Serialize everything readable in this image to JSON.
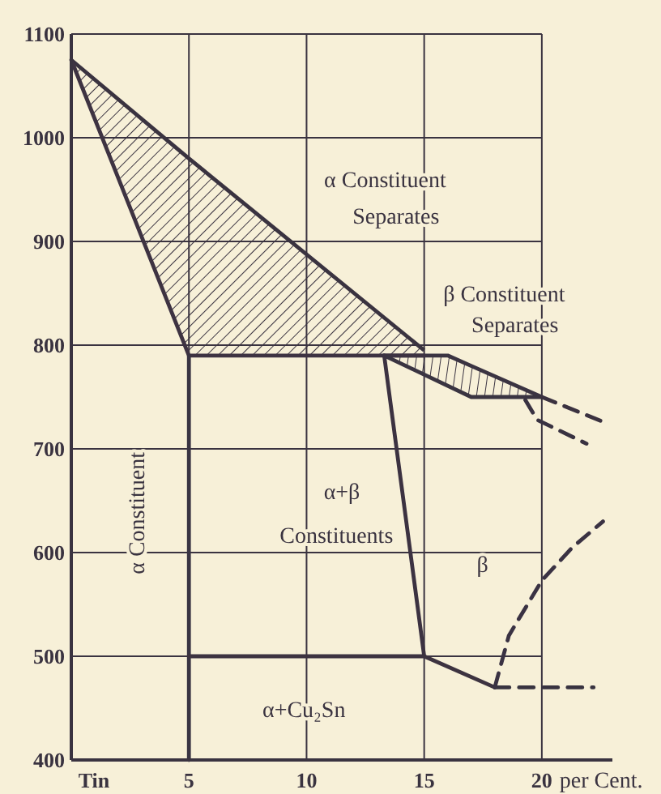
{
  "chart_data": {
    "type": "line",
    "xlabel": "per Cent.",
    "xlim": [
      0,
      23
    ],
    "ylim": [
      400,
      1100
    ],
    "xticks": [
      {
        "value": 0,
        "label": "Tin"
      },
      5,
      10,
      15,
      20
    ],
    "yticks": [
      400,
      500,
      600,
      700,
      800,
      900,
      1000,
      1100
    ],
    "grid": true,
    "marker": "none",
    "line_style": "solid",
    "series": [
      {
        "color": "#3a3340",
        "x": [
          0,
          5,
          15
        ],
        "values": [
          1075,
          980,
          795
        ],
        "upper": [
          1075,
          980,
          795
        ],
        "lower": [
          1075,
          790,
          790
        ]
      },
      {
        "color": "#3b3442",
        "x": [
          13.3,
          16,
          17,
          20
        ],
        "values": [
          790,
          790,
          780,
          750
        ],
        "upper": [
          790,
          790,
          780,
          750
        ],
        "lower": [
          790,
          761,
          750,
          750
        ]
      },
      {
        "color": "#3e3342",
        "x": [
          0,
          5,
          15
        ],
        "values": [
          1075,
          790,
          790
        ]
      },
      {
        "color": "#3a3441",
        "x": [
          13.3,
          17,
          20
        ],
        "values": [
          790,
          750,
          750
        ]
      },
      {
        "color": "#3c3241",
        "x": [
          13.3,
          15
        ],
        "values": [
          790,
          500
        ]
      },
      {
        "color": "#393443",
        "x": [
          5,
          5
        ],
        "values": [
          790,
          400
        ]
      },
      {
        "color": "#3d3340",
        "x": [
          5,
          15,
          18
        ],
        "values": [
          500,
          500,
          470
        ]
      },
      {
        "color": "#383340",
        "line_style": "dashed",
        "x": [
          18,
          22.2
        ],
        "values": [
          470,
          470
        ]
      },
      {
        "color": "#3a3243",
        "line_style": "dashed",
        "x": [
          18,
          18.6,
          20,
          21.3,
          22.6
        ],
        "values": [
          470,
          520,
          573,
          605,
          630
        ]
      },
      {
        "color": "#3b3240",
        "line_style": "dashed",
        "x": [
          20,
          22.5
        ],
        "values": [
          750,
          727
        ]
      },
      {
        "color": "#393241",
        "line_style": "dashed",
        "x": [
          19.3,
          19.8,
          21.9
        ],
        "values": [
          747,
          728,
          705
        ]
      }
    ],
    "annotations": [
      "α Constituent",
      "Separates",
      "β Constituent",
      "Separates",
      "α+β",
      "Constituents",
      "β",
      "α Constituent",
      "α+Cu₂Sn"
    ]
  }
}
